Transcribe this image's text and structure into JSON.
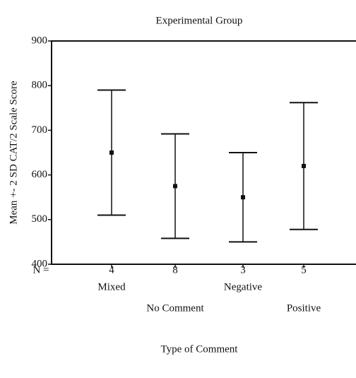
{
  "chart_data": {
    "type": "errorbar",
    "title": "Experimental Group",
    "x_label": "Type of Comment",
    "y_label": "Mean +- 2 SD CAT/2 Scale Score",
    "categories": [
      "Mixed",
      "No Comment",
      "Negative",
      "Positive"
    ],
    "values": [
      650,
      575,
      550,
      620
    ],
    "errors": [
      140,
      117,
      100,
      142
    ],
    "n_label": "N =",
    "n": [
      4,
      8,
      3,
      5
    ],
    "ylim": [
      400,
      900
    ],
    "yticks": [
      400,
      500,
      600,
      700,
      800,
      900
    ],
    "color": "#111111"
  }
}
